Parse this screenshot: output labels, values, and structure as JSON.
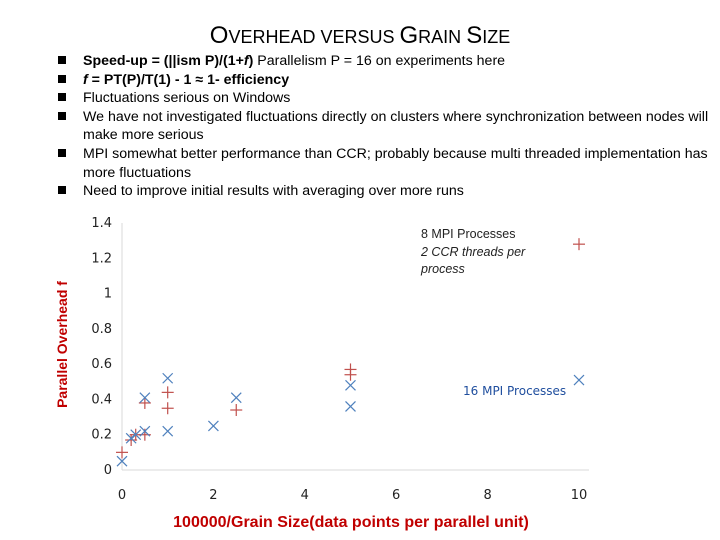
{
  "slide": {
    "title_parts": [
      "O",
      "VERHEAD VERSUS ",
      "G",
      "RAIN ",
      "S",
      "IZE"
    ],
    "bullets": [
      {
        "segments": [
          {
            "text": "Speed-up = (||ism P)/(1+",
            "style": "b"
          },
          {
            "text": "f",
            "style": "bi"
          },
          {
            "text": ")",
            "style": "b"
          },
          {
            "text": "   Parallelism P = 16 on experiments here",
            "style": ""
          }
        ]
      },
      {
        "segments": [
          {
            "text": "f",
            "style": "bi"
          },
          {
            "text": " = PT(P)/T(1)  - 1  ",
            "style": "b"
          },
          {
            "text": "≈",
            "style": "b"
          },
          {
            "text": " 1- efficiency",
            "style": "b"
          }
        ]
      },
      {
        "segments": [
          {
            "text": "Fluctuations serious on Windows",
            "style": ""
          }
        ]
      },
      {
        "segments": [
          {
            "text": "We have not investigated fluctuations directly on clusters where synchronization between nodes will make more serious",
            "style": ""
          }
        ]
      },
      {
        "segments": [
          {
            "text": "MPI somewhat better performance than CCR; probably because multi threaded implementation has more fluctuations",
            "style": ""
          }
        ]
      },
      {
        "segments": [
          {
            "text": "Need to improve initial results with averaging over more runs",
            "style": ""
          }
        ]
      }
    ]
  },
  "chart_data": {
    "type": "scatter",
    "xlabel": "100000/Grain Size(data points per parallel unit)",
    "ylabel": "Parallel Overhead f",
    "xlim": [
      0,
      10
    ],
    "ylim": [
      0,
      1.4
    ],
    "xticks": [
      "0",
      "2",
      "4",
      "6",
      "8",
      "10"
    ],
    "yticks": [
      "0",
      "0.2",
      "0.4",
      "0.6",
      "0.8",
      "1",
      "1.2",
      "1.4"
    ],
    "grid": false,
    "series": [
      {
        "marker": "plus",
        "color": "#c0504d",
        "points": [
          [
            0,
            0.1
          ],
          [
            0.2,
            0.17
          ],
          [
            0.3,
            0.2
          ],
          [
            0.5,
            0.38
          ],
          [
            0.5,
            0.2
          ],
          [
            1,
            0.35
          ],
          [
            1,
            0.44
          ],
          [
            2.5,
            0.34
          ],
          [
            5,
            0.57
          ],
          [
            5,
            0.54
          ],
          [
            10,
            1.28
          ]
        ]
      },
      {
        "marker": "cross",
        "color": "#4f81bd",
        "points": [
          [
            0,
            0.05
          ],
          [
            0.2,
            0.18
          ],
          [
            0.3,
            0.2
          ],
          [
            0.5,
            0.41
          ],
          [
            0.5,
            0.22
          ],
          [
            1,
            0.52
          ],
          [
            1,
            0.22
          ],
          [
            2,
            0.25
          ],
          [
            2.5,
            0.41
          ],
          [
            5,
            0.48
          ],
          [
            5,
            0.36
          ],
          [
            10,
            0.51
          ]
        ]
      }
    ],
    "annotations": [
      {
        "lines": [
          "8 MPI Processes"
        ],
        "style": "ann1"
      },
      {
        "lines": [
          "2 CCR threads per",
          "process"
        ],
        "style": "ann1-italic"
      },
      {
        "lines": [
          "16 MPI Processes"
        ],
        "style": "ann2"
      }
    ]
  }
}
